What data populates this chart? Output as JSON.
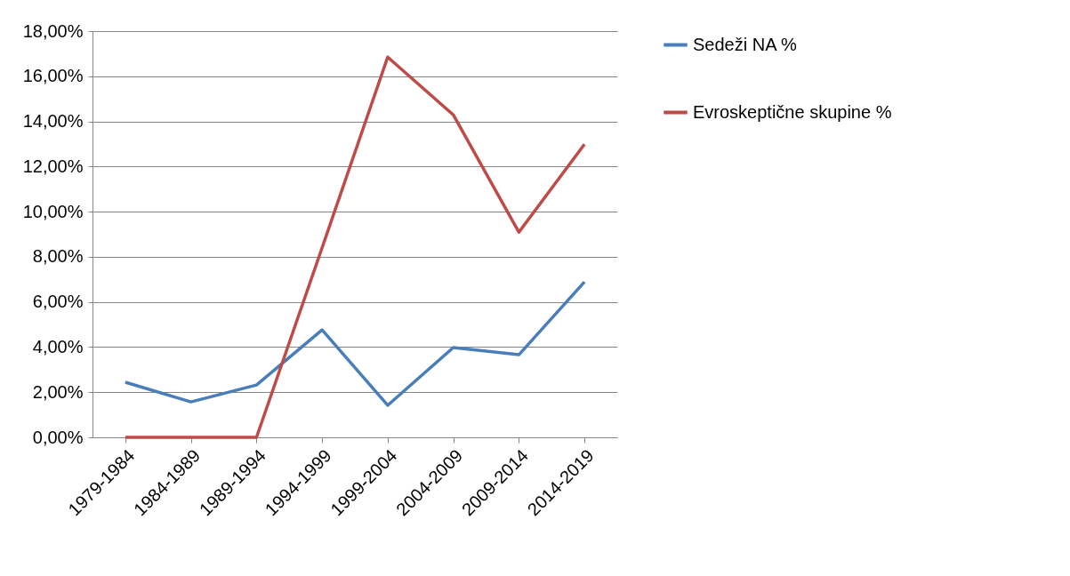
{
  "chart_data": {
    "type": "line",
    "categories": [
      "1979-1984",
      "1984-1989",
      "1989-1994",
      "1994-1999",
      "1999-2004",
      "2004-2009",
      "2009-2014",
      "2014-2019"
    ],
    "series": [
      {
        "name": "Sedeži NA %",
        "color": "#4a7ebb",
        "values": [
          2.44,
          1.57,
          2.32,
          4.76,
          1.42,
          3.98,
          3.66,
          6.89
        ]
      },
      {
        "name": "Evroskeptične skupine %",
        "color": "#be4b48",
        "values": [
          0,
          0,
          0,
          8.4,
          16.85,
          14.29,
          9.09,
          12.99
        ]
      }
    ],
    "ylim": [
      0,
      18
    ],
    "yticks": [
      {
        "value": 0,
        "label": "0,00%"
      },
      {
        "value": 2,
        "label": "2,00%"
      },
      {
        "value": 4,
        "label": "4,00%"
      },
      {
        "value": 6,
        "label": "6,00%"
      },
      {
        "value": 8,
        "label": "8,00%"
      },
      {
        "value": 10,
        "label": "10,00%"
      },
      {
        "value": 12,
        "label": "12,00%"
      },
      {
        "value": 14,
        "label": "14,00%"
      },
      {
        "value": 16,
        "label": "16,00%"
      },
      {
        "value": 18,
        "label": "18,00%"
      }
    ],
    "grid": "y",
    "legend": "right",
    "marker": "none",
    "line_style": "solid"
  }
}
